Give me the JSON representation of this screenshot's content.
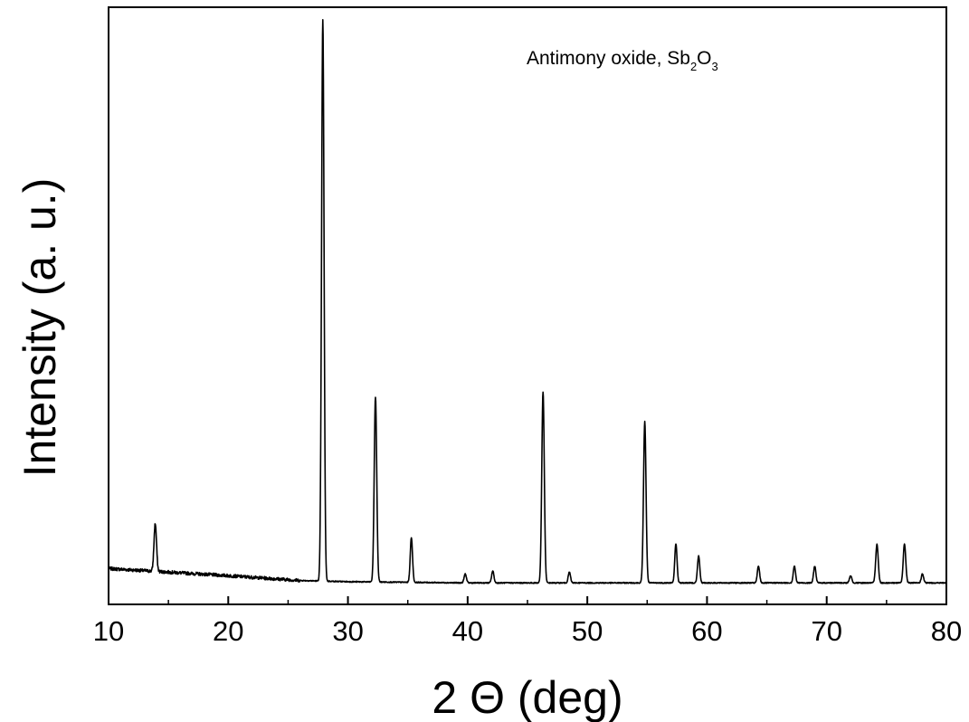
{
  "chart_data": {
    "type": "line",
    "xlabel": "2 Θ (deg)",
    "ylabel": "Intensity (a. u.)",
    "annotation": {
      "text": "Antimony oxide, Sb",
      "sub1": "2",
      "mid": "O",
      "sub2": "3"
    },
    "xlim": [
      10,
      80
    ],
    "ylim": [
      0,
      100
    ],
    "xticks": [
      "10",
      "20",
      "30",
      "40",
      "50",
      "60",
      "70",
      "80"
    ],
    "grid": false,
    "legend": "none",
    "baseline": [
      {
        "x": 10,
        "y": 6.0
      },
      {
        "x": 20,
        "y": 4.8
      },
      {
        "x": 26,
        "y": 4.0
      },
      {
        "x": 30,
        "y": 3.8
      },
      {
        "x": 40,
        "y": 3.6
      },
      {
        "x": 60,
        "y": 3.6
      },
      {
        "x": 80,
        "y": 3.6
      }
    ],
    "peaks": [
      {
        "x": 13.9,
        "height": 8.0,
        "width": 0.22
      },
      {
        "x": 27.9,
        "height": 94.0,
        "width": 0.22
      },
      {
        "x": 32.3,
        "height": 31.0,
        "width": 0.22
      },
      {
        "x": 35.3,
        "height": 7.5,
        "width": 0.2
      },
      {
        "x": 39.8,
        "height": 1.5,
        "width": 0.2
      },
      {
        "x": 42.1,
        "height": 2.0,
        "width": 0.2
      },
      {
        "x": 46.3,
        "height": 32.0,
        "width": 0.22
      },
      {
        "x": 48.5,
        "height": 1.8,
        "width": 0.2
      },
      {
        "x": 54.8,
        "height": 27.0,
        "width": 0.22
      },
      {
        "x": 57.4,
        "height": 6.5,
        "width": 0.2
      },
      {
        "x": 59.3,
        "height": 4.5,
        "width": 0.2
      },
      {
        "x": 64.3,
        "height": 2.8,
        "width": 0.2
      },
      {
        "x": 67.3,
        "height": 2.8,
        "width": 0.2
      },
      {
        "x": 69.0,
        "height": 2.8,
        "width": 0.2
      },
      {
        "x": 72.0,
        "height": 1.2,
        "width": 0.2
      },
      {
        "x": 74.2,
        "height": 6.5,
        "width": 0.22
      },
      {
        "x": 76.5,
        "height": 6.5,
        "width": 0.22
      },
      {
        "x": 78.0,
        "height": 1.5,
        "width": 0.2
      }
    ]
  }
}
